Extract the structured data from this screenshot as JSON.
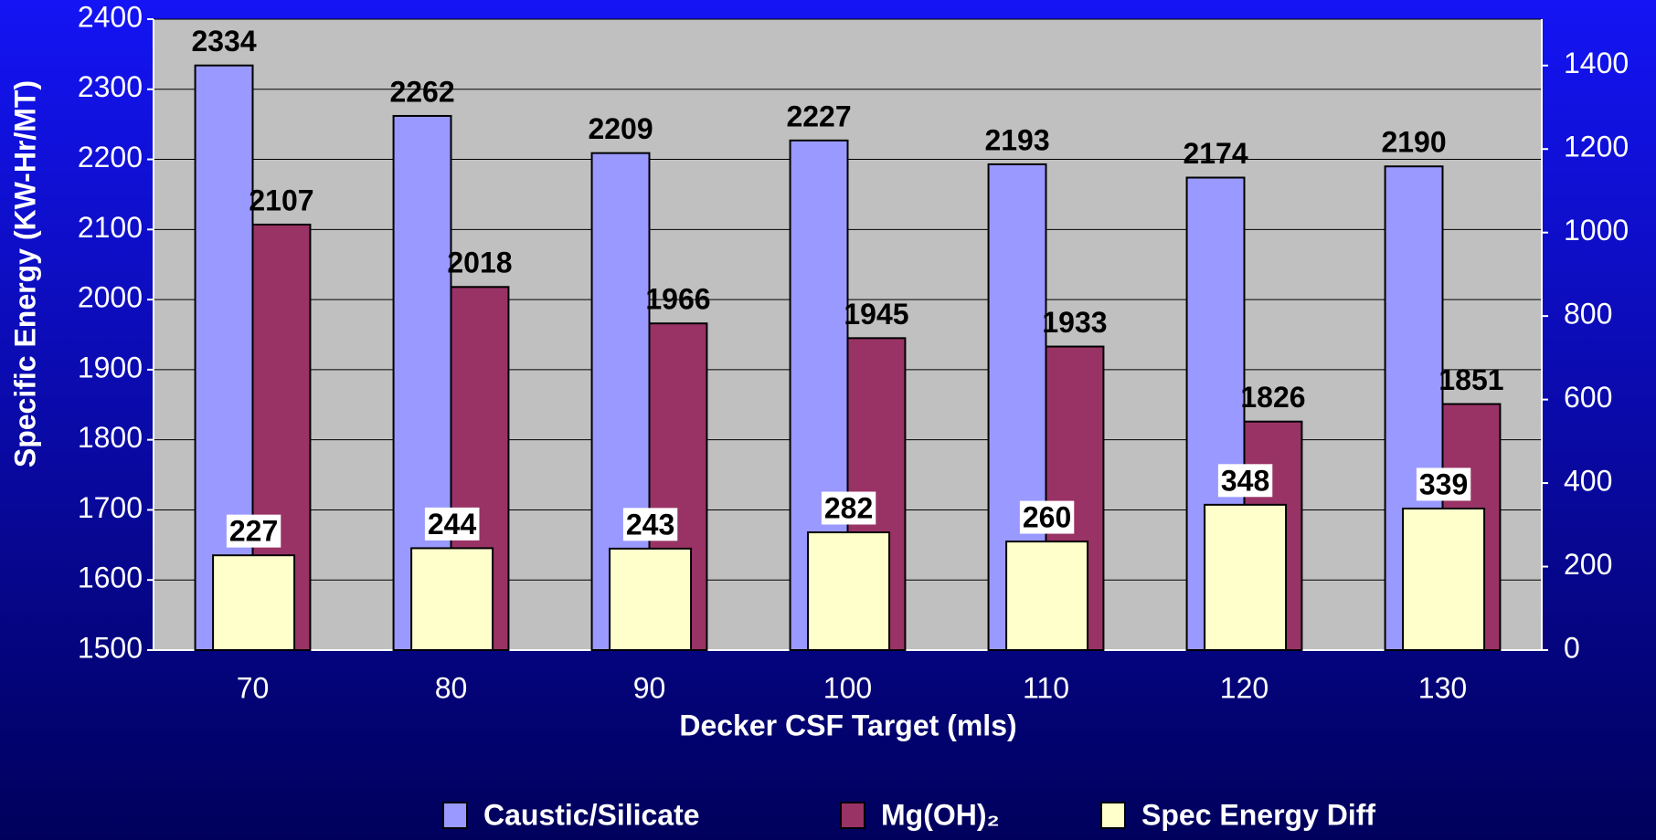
{
  "chart_data": {
    "type": "bar",
    "x_label": "Decker CSF Target (mls)",
    "y_label": "Specific Energy (KW-Hr/MT)",
    "categories": [
      "70",
      "80",
      "90",
      "100",
      "110",
      "120",
      "130"
    ],
    "series": [
      {
        "name": "Caustic/Silicate",
        "color": "#9999ff",
        "values": [
          2334,
          2262,
          2209,
          2227,
          2193,
          2174,
          2190
        ]
      },
      {
        "name": "Mg(OH)₂",
        "color": "#993366",
        "values": [
          2107,
          2018,
          1966,
          1945,
          1933,
          1826,
          1851
        ]
      },
      {
        "name": "Spec Energy Diff",
        "color": "#ffffcc",
        "axis": "y2",
        "values": [
          227,
          244,
          243,
          282,
          260,
          348,
          339
        ]
      }
    ],
    "ylim": [
      1500,
      2400
    ],
    "yticks": [
      1500,
      1600,
      1700,
      1800,
      1900,
      2000,
      2100,
      2200,
      2300,
      2400
    ],
    "y2lim": [
      0,
      1511
    ],
    "y2ticks": [
      0,
      200,
      400,
      600,
      800,
      1000,
      1200,
      1400
    ],
    "grid": true,
    "legend": "bottom"
  }
}
